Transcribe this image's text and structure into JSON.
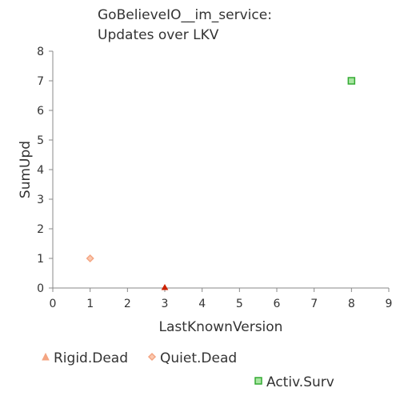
{
  "chart_data": {
    "type": "scatter",
    "title_lines": [
      "GoBelieveIO__im_service:",
      "Updates over LKV"
    ],
    "xlabel": "LastKnownVersion",
    "ylabel": "SumUpd",
    "xlim": [
      0,
      9
    ],
    "ylim": [
      0,
      8
    ],
    "xticks": [
      "0",
      "1",
      "2",
      "3",
      "4",
      "5",
      "6",
      "7",
      "8",
      "9"
    ],
    "yticks": [
      "0",
      "1",
      "2",
      "3",
      "4",
      "5",
      "6",
      "7",
      "8"
    ],
    "grid": false,
    "series": [
      {
        "name": "Rigid.Dead",
        "marker": "triangle",
        "color": "#cc2200",
        "fill": "#f4a582",
        "points": [
          {
            "x": 3,
            "y": 0
          }
        ]
      },
      {
        "name": "Quiet.Dead",
        "marker": "diamond",
        "color": "#f4a582",
        "fill": "#fbc9b0",
        "points": [
          {
            "x": 1,
            "y": 1
          }
        ]
      },
      {
        "name": "Activ.Surv",
        "marker": "square",
        "color": "#33aa33",
        "fill": "#a8e6a1",
        "points": [
          {
            "x": 8,
            "y": 7
          }
        ]
      }
    ]
  }
}
